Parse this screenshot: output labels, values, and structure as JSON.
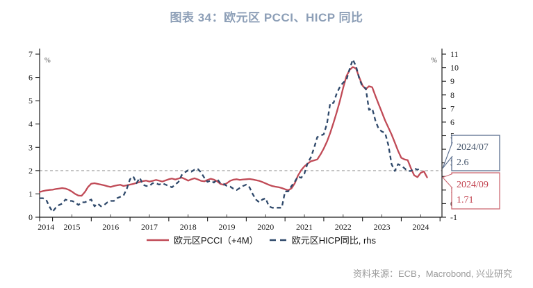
{
  "chart_data": {
    "type": "line",
    "title": "图表 34：欧元区 PCCI、HICP 同比",
    "x_axis": {
      "start": "2014-09",
      "end": "2024-09",
      "year_tick_labels": [
        "2014",
        "2015",
        "2016",
        "2017",
        "2018",
        "2019",
        "2020",
        "2021",
        "2022",
        "2023",
        "2024"
      ]
    },
    "y_axis_left": {
      "position": "left",
      "min": 0,
      "max": 7,
      "step": 1,
      "unit": "%"
    },
    "y_axis_right": {
      "position": "right",
      "min": -1,
      "max": 11,
      "step": 1,
      "unit": "%"
    },
    "reference_line": {
      "axis": "left",
      "value": 2,
      "style": "dashed",
      "color": "#ababab"
    },
    "series": [
      {
        "name": "欧元区PCCI（+4M）",
        "axis": "left",
        "line_style": "solid",
        "color": "#c04a56",
        "frequency": "monthly",
        "start_year": 2014,
        "start_month": 9,
        "values": [
          1.08,
          1.12,
          1.15,
          1.17,
          1.18,
          1.21,
          1.23,
          1.25,
          1.23,
          1.18,
          1.1,
          1.0,
          0.93,
          0.92,
          1.08,
          1.3,
          1.44,
          1.46,
          1.43,
          1.4,
          1.37,
          1.33,
          1.3,
          1.34,
          1.37,
          1.39,
          1.34,
          1.37,
          1.4,
          1.43,
          1.47,
          1.51,
          1.55,
          1.57,
          1.53,
          1.56,
          1.6,
          1.57,
          1.53,
          1.58,
          1.63,
          1.66,
          1.62,
          1.66,
          1.7,
          1.64,
          1.57,
          1.63,
          1.67,
          1.62,
          1.56,
          1.54,
          1.6,
          1.65,
          1.61,
          1.54,
          1.43,
          1.39,
          1.46,
          1.56,
          1.61,
          1.63,
          1.6,
          1.62,
          1.63,
          1.64,
          1.62,
          1.59,
          1.56,
          1.51,
          1.45,
          1.39,
          1.34,
          1.31,
          1.29,
          1.25,
          1.2,
          1.16,
          1.24,
          1.45,
          1.78,
          2.02,
          2.18,
          2.3,
          2.4,
          2.44,
          2.48,
          2.7,
          2.95,
          3.25,
          3.62,
          4.05,
          4.5,
          5.0,
          5.55,
          6.05,
          6.32,
          6.45,
          6.38,
          6.0,
          5.65,
          5.5,
          5.62,
          5.58,
          5.2,
          4.85,
          4.5,
          4.15,
          3.85,
          3.55,
          3.2,
          2.85,
          2.55,
          2.48,
          2.45,
          2.1,
          1.8,
          1.72,
          1.9,
          1.97,
          1.71
        ]
      },
      {
        "name": "欧元区HICP同比, rhs",
        "axis": "right",
        "line_style": "dashed",
        "color": "#2e486a",
        "frequency": "monthly",
        "start_year": 2014,
        "start_month": 9,
        "values": [
          0.4,
          0.4,
          0.3,
          -0.2,
          -0.6,
          -0.3,
          -0.1,
          0.0,
          0.3,
          0.2,
          0.2,
          0.1,
          -0.1,
          0.1,
          0.1,
          0.2,
          0.3,
          -0.2,
          0.0,
          -0.2,
          -0.1,
          0.1,
          0.2,
          0.2,
          0.4,
          0.5,
          0.6,
          1.1,
          1.8,
          2.0,
          1.5,
          1.9,
          1.4,
          1.3,
          1.3,
          1.5,
          1.5,
          1.4,
          1.5,
          1.4,
          1.3,
          1.2,
          1.4,
          1.6,
          2.1,
          2.3,
          2.45,
          2.35,
          2.5,
          2.55,
          2.3,
          1.9,
          1.6,
          1.7,
          1.55,
          1.8,
          1.5,
          1.45,
          1.3,
          1.25,
          1.1,
          1.0,
          1.15,
          1.3,
          1.4,
          1.2,
          0.7,
          0.3,
          0.1,
          0.3,
          0.4,
          -0.2,
          -0.3,
          -0.3,
          -0.3,
          -0.3,
          0.9,
          0.9,
          1.3,
          1.6,
          2.0,
          1.9,
          2.2,
          3.0,
          3.4,
          4.1,
          4.9,
          5.0,
          5.1,
          5.9,
          7.4,
          7.4,
          8.1,
          8.6,
          8.9,
          9.1,
          9.9,
          10.6,
          10.1,
          9.2,
          8.6,
          8.5,
          6.9,
          7.0,
          6.1,
          5.5,
          5.3,
          5.2,
          4.3,
          2.9,
          2.4,
          2.9,
          2.8,
          2.6,
          2.4,
          2.4,
          2.6,
          2.5,
          2.6
        ]
      }
    ],
    "callouts": [
      {
        "date": "2024/07",
        "value": "2.6",
        "target_axis": "right",
        "target_value": 2.6,
        "text_color": "#44546a",
        "border_color": "#5a6e8e"
      },
      {
        "date": "2024/09",
        "value": "1.71",
        "target_axis": "left",
        "target_value": 1.71,
        "text_color": "#c2424f",
        "border_color": "#cd6a74"
      }
    ],
    "legend_position": "bottom"
  },
  "source": {
    "text": "资料来源：ECB，Macrobond, 兴业研究"
  },
  "colors": {
    "title": "#8d9fb7",
    "axis": "#1a1a1a",
    "pcci_line": "#c04a56",
    "hicp_line": "#2e486a",
    "gridline": "#ababab",
    "source_text": "#9a9a9a"
  }
}
